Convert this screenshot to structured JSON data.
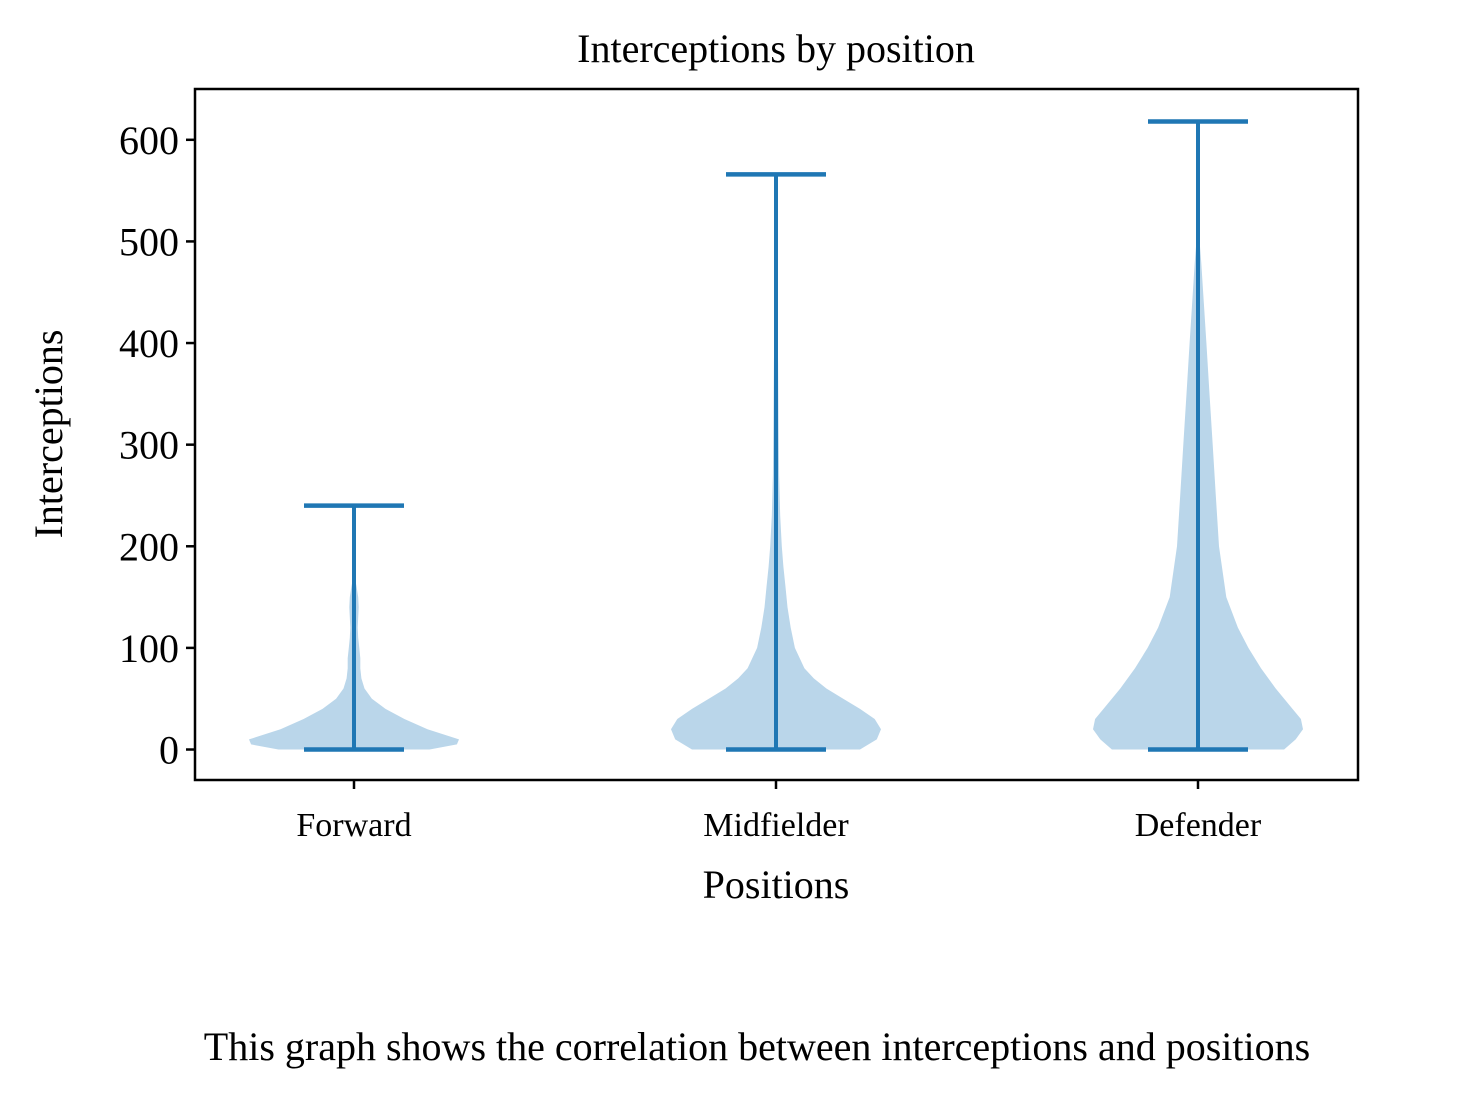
{
  "chart_data": {
    "type": "violin",
    "title": "Interceptions by position",
    "xlabel": "Positions",
    "ylabel": "Interceptions",
    "categories": [
      "Forward",
      "Midfielder",
      "Defender"
    ],
    "ylim": [
      -30,
      650
    ],
    "yticks": [
      0,
      100,
      200,
      300,
      400,
      500,
      600
    ],
    "grid": false,
    "legend": "none",
    "series": [
      {
        "category": "Forward",
        "min": 0,
        "max": 240,
        "density": [
          [
            0,
            0.72
          ],
          [
            5,
            0.98
          ],
          [
            10,
            1.0
          ],
          [
            20,
            0.7
          ],
          [
            30,
            0.48
          ],
          [
            40,
            0.3
          ],
          [
            50,
            0.17
          ],
          [
            60,
            0.1
          ],
          [
            70,
            0.07
          ],
          [
            80,
            0.06
          ],
          [
            90,
            0.06
          ],
          [
            100,
            0.05
          ],
          [
            110,
            0.04
          ],
          [
            120,
            0.035
          ],
          [
            130,
            0.04
          ],
          [
            140,
            0.045
          ],
          [
            150,
            0.04
          ],
          [
            160,
            0.025
          ],
          [
            170,
            0.008
          ]
        ]
      },
      {
        "category": "Midfielder",
        "min": 0,
        "max": 566,
        "density": [
          [
            0,
            0.8
          ],
          [
            10,
            0.96
          ],
          [
            20,
            1.0
          ],
          [
            30,
            0.94
          ],
          [
            40,
            0.8
          ],
          [
            50,
            0.64
          ],
          [
            60,
            0.48
          ],
          [
            70,
            0.36
          ],
          [
            80,
            0.27
          ],
          [
            100,
            0.18
          ],
          [
            120,
            0.14
          ],
          [
            140,
            0.11
          ],
          [
            160,
            0.09
          ],
          [
            180,
            0.07
          ],
          [
            200,
            0.055
          ],
          [
            230,
            0.04
          ],
          [
            270,
            0.03
          ],
          [
            320,
            0.025
          ],
          [
            380,
            0.02
          ],
          [
            430,
            0.012
          ],
          [
            470,
            0.005
          ]
        ]
      },
      {
        "category": "Defender",
        "min": 0,
        "max": 618,
        "density": [
          [
            0,
            0.82
          ],
          [
            10,
            0.93
          ],
          [
            20,
            1.0
          ],
          [
            30,
            0.98
          ],
          [
            40,
            0.9
          ],
          [
            60,
            0.74
          ],
          [
            80,
            0.6
          ],
          [
            100,
            0.48
          ],
          [
            120,
            0.38
          ],
          [
            150,
            0.27
          ],
          [
            200,
            0.2
          ],
          [
            250,
            0.17
          ],
          [
            300,
            0.14
          ],
          [
            350,
            0.11
          ],
          [
            400,
            0.08
          ],
          [
            440,
            0.055
          ],
          [
            480,
            0.03
          ],
          [
            510,
            0.008
          ]
        ]
      }
    ],
    "colors": {
      "body": "#bad6ea",
      "line": "#1f77b4"
    }
  },
  "caption": "This graph shows the correlation between interceptions and positions"
}
